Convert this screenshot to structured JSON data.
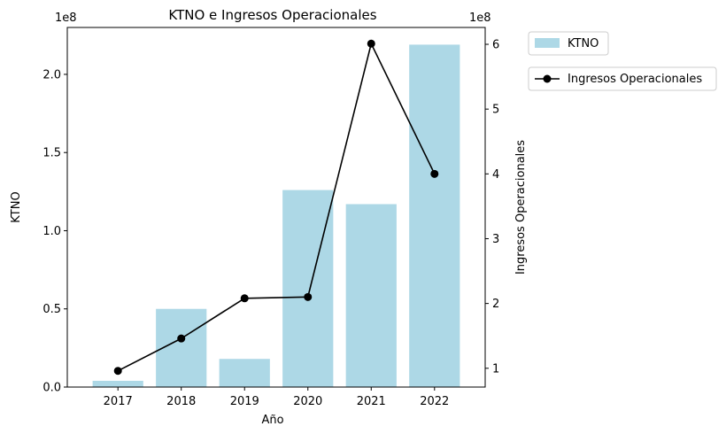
{
  "chart_data": {
    "type": "bar",
    "title": "KTNO e Ingresos Operacionales",
    "xlabel": "Año",
    "categories": [
      "2017",
      "2018",
      "2019",
      "2020",
      "2021",
      "2022"
    ],
    "series": [
      {
        "name": "KTNO",
        "type": "bar",
        "axis": "left",
        "color": "#add8e6",
        "values": [
          4000000,
          50000000,
          18000000,
          126000000,
          117000000,
          219000000
        ]
      },
      {
        "name": "Ingresos Operacionales",
        "type": "line",
        "axis": "right",
        "color": "#000000",
        "marker": "circle",
        "values": [
          96000000,
          146000000,
          208000000,
          210000000,
          601000000,
          400000000
        ]
      }
    ],
    "y_left": {
      "label": "KTNO",
      "exponent": "1e8",
      "scale": 100000000,
      "range": [
        0,
        230000000
      ],
      "ticks": [
        0,
        50000000,
        100000000,
        150000000,
        200000000
      ],
      "tick_labels": [
        "0.0",
        "0.5",
        "1.0",
        "1.5",
        "2.0"
      ]
    },
    "y_right": {
      "label": "Ingresos Operacionales",
      "exponent": "1e8",
      "scale": 100000000,
      "range": [
        71000000,
        626000000
      ],
      "ticks": [
        100000000,
        200000000,
        300000000,
        400000000,
        500000000,
        600000000
      ],
      "tick_labels": [
        "1",
        "2",
        "3",
        "4",
        "5",
        "6"
      ]
    },
    "grid": false,
    "legend_placement": "outside-right-top"
  }
}
